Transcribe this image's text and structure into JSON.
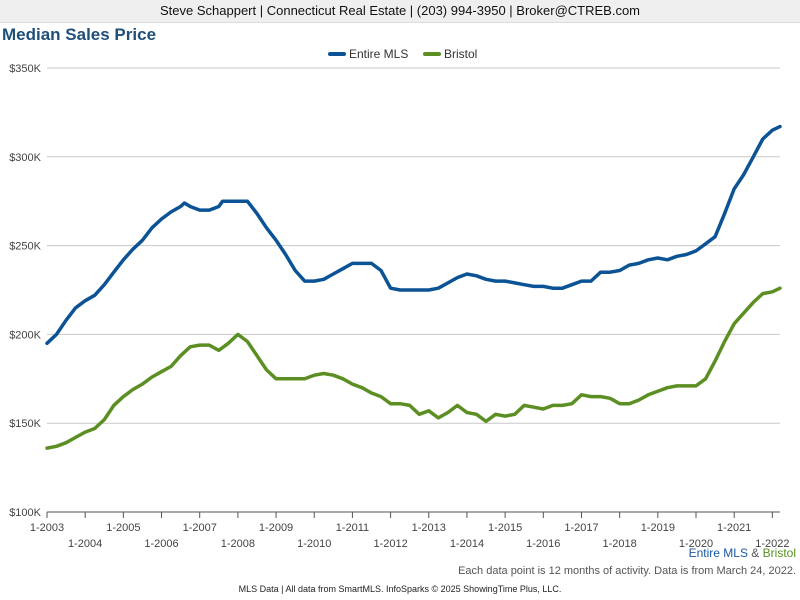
{
  "header": {
    "contact_line": "Steve Schappert | Connecticut Real Estate | (203) 994-3950 | Broker@CTREB.com"
  },
  "caption": {
    "entire": "Entire MLS",
    "amp": "&",
    "bristol": "Bristol"
  },
  "note": "Each data point is 12 months of activity. Data is from March 24, 2022.",
  "footer": "MLS Data | All data from SmartMLS. InfoSparks © 2025 ShowingTime Plus, LLC.",
  "chart_data": {
    "type": "line",
    "title": "Median Sales Price",
    "legend": {
      "placement": "top-center"
    },
    "grid": true,
    "colors": {
      "Entire MLS": "#0b5394",
      "Bristol": "#5c8f23"
    },
    "ylim": [
      100000,
      350000
    ],
    "y_ticks": [
      100000,
      150000,
      200000,
      250000,
      300000,
      350000
    ],
    "y_tick_labels": [
      "$100K",
      "$150K",
      "$200K",
      "$250K",
      "$300K",
      "$350K"
    ],
    "x_ticks": [
      2003,
      2004,
      2005,
      2006,
      2007,
      2008,
      2009,
      2010,
      2011,
      2012,
      2013,
      2014,
      2015,
      2016,
      2017,
      2018,
      2019,
      2020,
      2021,
      2022
    ],
    "x_tick_labels": [
      "1-2003",
      "1-2004",
      "1-2005",
      "1-2006",
      "1-2007",
      "1-2008",
      "1-2009",
      "1-2010",
      "1-2011",
      "1-2012",
      "1-2013",
      "1-2014",
      "1-2015",
      "1-2016",
      "1-2017",
      "1-2018",
      "1-2019",
      "1-2020",
      "1-2021",
      "1-2022"
    ],
    "series": [
      {
        "name": "Entire MLS",
        "points": [
          [
            2003.0,
            195000
          ],
          [
            2003.25,
            200000
          ],
          [
            2003.5,
            208000
          ],
          [
            2003.75,
            215000
          ],
          [
            2004.0,
            219000
          ],
          [
            2004.25,
            222000
          ],
          [
            2004.5,
            228000
          ],
          [
            2004.75,
            235000
          ],
          [
            2005.0,
            242000
          ],
          [
            2005.25,
            248000
          ],
          [
            2005.5,
            253000
          ],
          [
            2005.75,
            260000
          ],
          [
            2006.0,
            265000
          ],
          [
            2006.25,
            269000
          ],
          [
            2006.5,
            272000
          ],
          [
            2006.6,
            274000
          ],
          [
            2006.75,
            272000
          ],
          [
            2007.0,
            270000
          ],
          [
            2007.25,
            270000
          ],
          [
            2007.5,
            272000
          ],
          [
            2007.6,
            275000
          ],
          [
            2008.0,
            275000
          ],
          [
            2008.25,
            275000
          ],
          [
            2008.5,
            268000
          ],
          [
            2008.75,
            260000
          ],
          [
            2009.0,
            253000
          ],
          [
            2009.25,
            245000
          ],
          [
            2009.5,
            236000
          ],
          [
            2009.75,
            230000
          ],
          [
            2010.0,
            230000
          ],
          [
            2010.25,
            231000
          ],
          [
            2010.5,
            234000
          ],
          [
            2010.75,
            237000
          ],
          [
            2011.0,
            240000
          ],
          [
            2011.25,
            240000
          ],
          [
            2011.5,
            240000
          ],
          [
            2011.75,
            236000
          ],
          [
            2012.0,
            226000
          ],
          [
            2012.25,
            225000
          ],
          [
            2012.5,
            225000
          ],
          [
            2012.75,
            225000
          ],
          [
            2013.0,
            225000
          ],
          [
            2013.25,
            226000
          ],
          [
            2013.5,
            229000
          ],
          [
            2013.75,
            232000
          ],
          [
            2014.0,
            234000
          ],
          [
            2014.25,
            233000
          ],
          [
            2014.5,
            231000
          ],
          [
            2014.75,
            230000
          ],
          [
            2015.0,
            230000
          ],
          [
            2015.25,
            229000
          ],
          [
            2015.5,
            228000
          ],
          [
            2015.75,
            227000
          ],
          [
            2016.0,
            227000
          ],
          [
            2016.25,
            226000
          ],
          [
            2016.5,
            226000
          ],
          [
            2016.75,
            228000
          ],
          [
            2017.0,
            230000
          ],
          [
            2017.25,
            230000
          ],
          [
            2017.5,
            235000
          ],
          [
            2017.75,
            235000
          ],
          [
            2018.0,
            236000
          ],
          [
            2018.25,
            239000
          ],
          [
            2018.5,
            240000
          ],
          [
            2018.75,
            242000
          ],
          [
            2019.0,
            243000
          ],
          [
            2019.25,
            242000
          ],
          [
            2019.5,
            244000
          ],
          [
            2019.75,
            245000
          ],
          [
            2020.0,
            247000
          ],
          [
            2020.25,
            251000
          ],
          [
            2020.5,
            255000
          ],
          [
            2020.75,
            268000
          ],
          [
            2021.0,
            282000
          ],
          [
            2021.25,
            290000
          ],
          [
            2021.5,
            300000
          ],
          [
            2021.75,
            310000
          ],
          [
            2022.0,
            315000
          ],
          [
            2022.2,
            317000
          ]
        ]
      },
      {
        "name": "Bristol",
        "points": [
          [
            2003.0,
            136000
          ],
          [
            2003.25,
            137000
          ],
          [
            2003.5,
            139000
          ],
          [
            2003.75,
            142000
          ],
          [
            2004.0,
            145000
          ],
          [
            2004.25,
            147000
          ],
          [
            2004.5,
            152000
          ],
          [
            2004.75,
            160000
          ],
          [
            2005.0,
            165000
          ],
          [
            2005.25,
            169000
          ],
          [
            2005.5,
            172000
          ],
          [
            2005.75,
            176000
          ],
          [
            2006.0,
            179000
          ],
          [
            2006.25,
            182000
          ],
          [
            2006.5,
            188000
          ],
          [
            2006.75,
            193000
          ],
          [
            2007.0,
            194000
          ],
          [
            2007.25,
            194000
          ],
          [
            2007.5,
            191000
          ],
          [
            2007.75,
            195000
          ],
          [
            2008.0,
            200000
          ],
          [
            2008.25,
            196000
          ],
          [
            2008.5,
            188000
          ],
          [
            2008.75,
            180000
          ],
          [
            2009.0,
            175000
          ],
          [
            2009.25,
            175000
          ],
          [
            2009.5,
            175000
          ],
          [
            2009.75,
            175000
          ],
          [
            2010.0,
            177000
          ],
          [
            2010.25,
            178000
          ],
          [
            2010.5,
            177000
          ],
          [
            2010.75,
            175000
          ],
          [
            2011.0,
            172000
          ],
          [
            2011.25,
            170000
          ],
          [
            2011.5,
            167000
          ],
          [
            2011.75,
            165000
          ],
          [
            2012.0,
            161000
          ],
          [
            2012.25,
            161000
          ],
          [
            2012.5,
            160000
          ],
          [
            2012.75,
            155000
          ],
          [
            2013.0,
            157000
          ],
          [
            2013.25,
            153000
          ],
          [
            2013.5,
            156000
          ],
          [
            2013.75,
            160000
          ],
          [
            2014.0,
            156000
          ],
          [
            2014.25,
            155000
          ],
          [
            2014.5,
            151000
          ],
          [
            2014.75,
            155000
          ],
          [
            2015.0,
            154000
          ],
          [
            2015.25,
            155000
          ],
          [
            2015.5,
            160000
          ],
          [
            2015.75,
            159000
          ],
          [
            2016.0,
            158000
          ],
          [
            2016.25,
            160000
          ],
          [
            2016.5,
            160000
          ],
          [
            2016.75,
            161000
          ],
          [
            2017.0,
            166000
          ],
          [
            2017.25,
            165000
          ],
          [
            2017.5,
            165000
          ],
          [
            2017.75,
            164000
          ],
          [
            2018.0,
            161000
          ],
          [
            2018.25,
            161000
          ],
          [
            2018.5,
            163000
          ],
          [
            2018.75,
            166000
          ],
          [
            2019.0,
            168000
          ],
          [
            2019.25,
            170000
          ],
          [
            2019.5,
            171000
          ],
          [
            2019.75,
            171000
          ],
          [
            2020.0,
            171000
          ],
          [
            2020.25,
            175000
          ],
          [
            2020.5,
            185000
          ],
          [
            2020.75,
            196000
          ],
          [
            2021.0,
            206000
          ],
          [
            2021.25,
            212000
          ],
          [
            2021.5,
            218000
          ],
          [
            2021.75,
            223000
          ],
          [
            2022.0,
            224000
          ],
          [
            2022.2,
            226000
          ]
        ]
      }
    ]
  }
}
